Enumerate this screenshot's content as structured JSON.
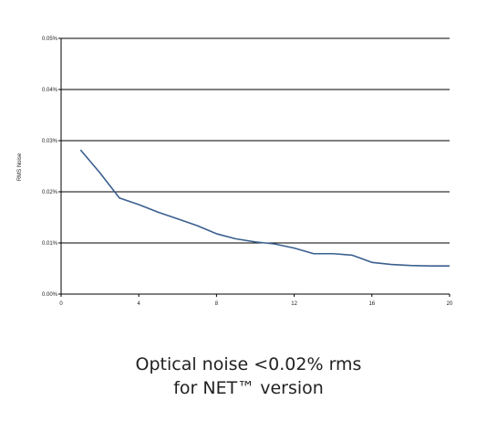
{
  "chart_data": {
    "type": "line",
    "title": "",
    "xlabel": "",
    "ylabel": "RMS Noise",
    "xlim": [
      0,
      20
    ],
    "ylim": [
      0,
      0.05
    ],
    "x_ticks": [
      0,
      4,
      8,
      12,
      16,
      20
    ],
    "x_tick_labels": [
      "0",
      "4",
      "8",
      "12",
      "16",
      "20"
    ],
    "y_ticks": [
      0,
      0.01,
      0.02,
      0.03,
      0.04,
      0.05
    ],
    "y_tick_labels": [
      "0.00%",
      "0.01%",
      "0.02%",
      "0.03%",
      "0.04%",
      "0.05%"
    ],
    "grid": "horizontal",
    "series": [
      {
        "color": "#3a5f8f",
        "x": [
          1,
          2,
          3,
          4,
          5,
          6,
          7,
          8,
          9,
          10,
          11,
          12,
          13,
          14,
          15,
          16,
          17,
          18,
          19,
          20
        ],
        "values": [
          0.0282,
          0.0237,
          0.0188,
          0.0175,
          0.016,
          0.0147,
          0.0134,
          0.0118,
          0.0108,
          0.0102,
          0.0098,
          0.009,
          0.0079,
          0.0079,
          0.0076,
          0.0062,
          0.0058,
          0.0056,
          0.0055,
          0.0055
        ]
      }
    ]
  },
  "caption": {
    "line1": "Optical noise <0.02% rms",
    "line2": "for NET™ version"
  }
}
